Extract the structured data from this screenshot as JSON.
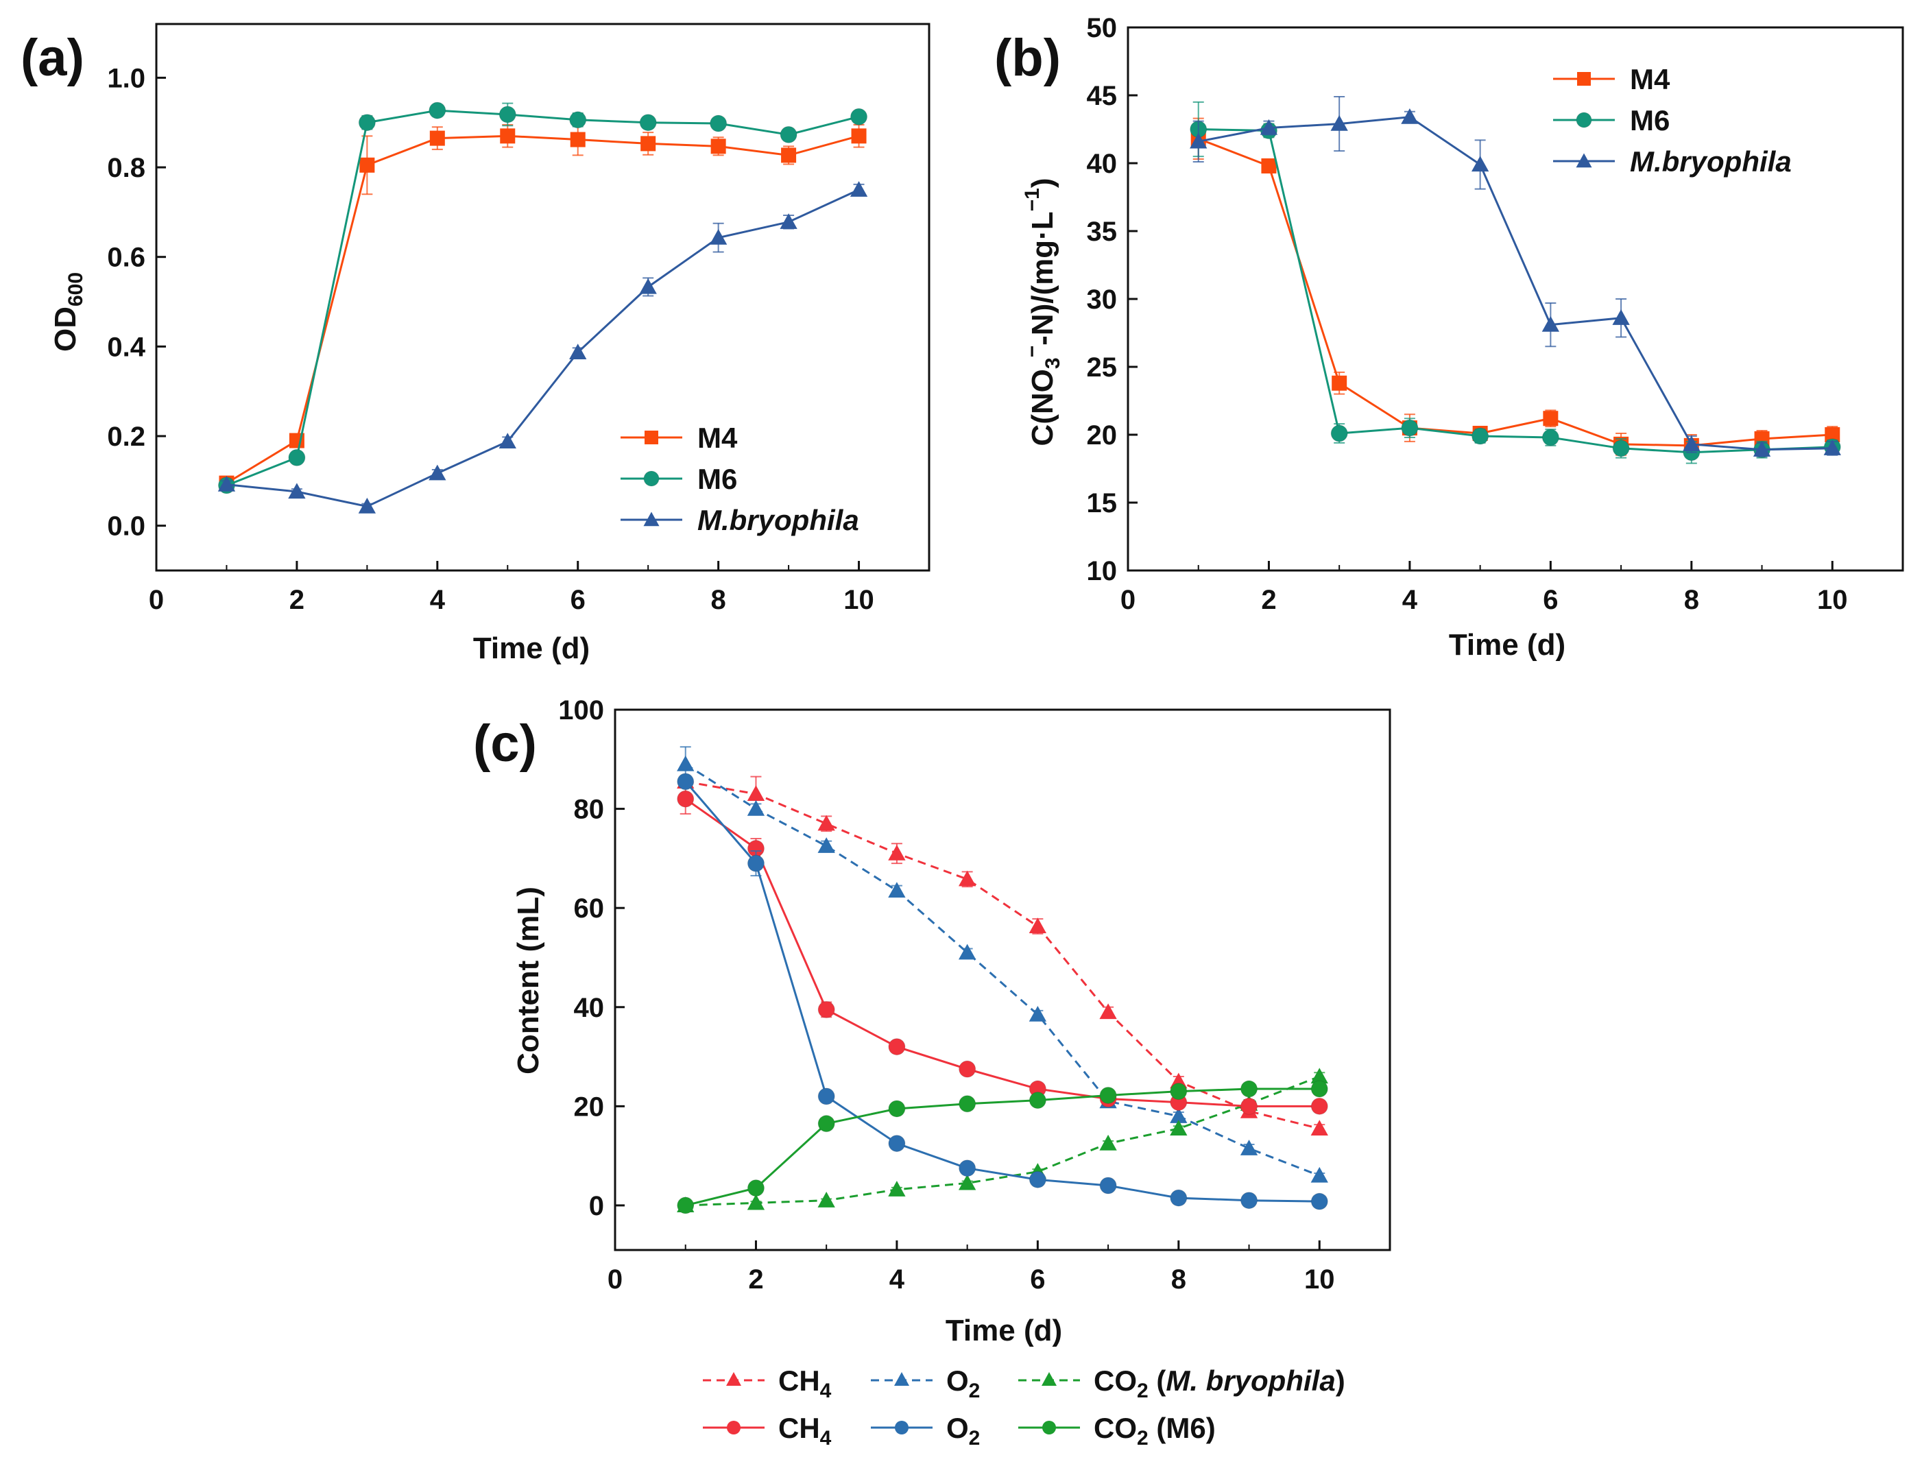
{
  "panels": [
    {
      "letter": "(a)",
      "xlabel": "Time (d)",
      "ylabel_main": "OD",
      "ylabel_sub": "600"
    },
    {
      "letter": "(b)",
      "xlabel": "Time (d)",
      "ylabel_main": "C(NO",
      "ylabel_sub": "3",
      "ylabel_sup": "−",
      "ylabel_rest": "-N)/(mg·L",
      "ylabel_sup2": "−1",
      "ylabel_end": ")"
    },
    {
      "letter": "(c)",
      "xlabel": "Time (d)",
      "ylabel": "Content (mL)"
    }
  ],
  "legend_c": [
    {
      "main": "CH",
      "sub": "4",
      "rest": ""
    },
    {
      "main": "O",
      "sub": "2",
      "rest": ""
    },
    {
      "main": "CO",
      "sub": "2",
      "rest_plain": " (",
      "rest_italic": "M. bryophila",
      "rest_end": ")"
    },
    {
      "main": "CH",
      "sub": "4",
      "rest": ""
    },
    {
      "main": "O",
      "sub": "2",
      "rest": ""
    },
    {
      "main": "CO",
      "sub": "2",
      "rest": " (M6)"
    }
  ],
  "chart_data": [
    {
      "type": "line",
      "panel": "(a)",
      "title": "",
      "xlabel": "Time (d)",
      "ylabel": "OD600",
      "xlim": [
        0,
        11
      ],
      "ylim": [
        -0.1,
        1.12
      ],
      "xticks": [
        0,
        2,
        4,
        6,
        8,
        10
      ],
      "yticks": [
        0.0,
        0.2,
        0.4,
        0.6,
        0.8,
        1.0
      ],
      "ytick_labels": [
        "0.0",
        "0.2",
        "0.4",
        "0.6",
        "0.8",
        "1.0"
      ],
      "legend_position": "lower-right",
      "x": [
        1,
        2,
        3,
        4,
        5,
        6,
        7,
        8,
        9,
        10
      ],
      "series": [
        {
          "name": "M4",
          "italic": false,
          "color": "#fa4a0c",
          "marker": "square",
          "values": [
            0.095,
            0.19,
            0.805,
            0.865,
            0.87,
            0.862,
            0.853,
            0.847,
            0.827,
            0.87
          ],
          "errors": [
            0.015,
            0.012,
            0.065,
            0.025,
            0.025,
            0.035,
            0.025,
            0.02,
            0.02,
            0.025
          ]
        },
        {
          "name": "M6",
          "italic": false,
          "color": "#14967a",
          "marker": "circle",
          "values": [
            0.09,
            0.152,
            0.9,
            0.927,
            0.918,
            0.906,
            0.9,
            0.898,
            0.873,
            0.913
          ],
          "errors": [
            0.008,
            0.008,
            0.015,
            0.012,
            0.025,
            0.015,
            0.012,
            0.01,
            0.012,
            0.012
          ]
        },
        {
          "name": "M.bryophila",
          "italic": true,
          "color": "#2f5a9e",
          "marker": "triangle",
          "values": [
            0.092,
            0.076,
            0.043,
            0.117,
            0.188,
            0.387,
            0.533,
            0.643,
            0.678,
            0.75
          ],
          "errors": [
            0.008,
            0.006,
            0.006,
            0.008,
            0.01,
            0.01,
            0.02,
            0.032,
            0.015,
            0.012
          ]
        }
      ]
    },
    {
      "type": "line",
      "panel": "(b)",
      "title": "",
      "xlabel": "Time (d)",
      "ylabel": "C(NO3−-N)/(mg·L−1)",
      "xlim": [
        0,
        11
      ],
      "ylim": [
        10,
        50
      ],
      "xticks": [
        0,
        2,
        4,
        6,
        8,
        10
      ],
      "yticks": [
        10,
        15,
        20,
        25,
        30,
        35,
        40,
        45,
        50
      ],
      "ytick_labels": [
        "10",
        "15",
        "20",
        "25",
        "30",
        "35",
        "40",
        "45",
        "50"
      ],
      "legend_position": "upper-right",
      "x": [
        1,
        2,
        3,
        4,
        5,
        6,
        7,
        8,
        9,
        10
      ],
      "series": [
        {
          "name": "M4",
          "italic": false,
          "color": "#fa4a0c",
          "marker": "square",
          "values": [
            41.8,
            39.8,
            23.8,
            20.5,
            20.1,
            21.2,
            19.3,
            19.2,
            19.7,
            20.0
          ],
          "errors": [
            1.5,
            0.5,
            0.8,
            1.0,
            0.5,
            0.6,
            0.8,
            0.8,
            0.6,
            0.6
          ]
        },
        {
          "name": "M6",
          "italic": false,
          "color": "#14967a",
          "marker": "circle",
          "values": [
            42.5,
            42.4,
            20.1,
            20.5,
            19.9,
            19.8,
            19.0,
            18.7,
            18.9,
            19.1
          ],
          "errors": [
            2.0,
            0.5,
            0.7,
            0.7,
            0.5,
            0.6,
            0.7,
            0.8,
            0.6,
            0.5
          ]
        },
        {
          "name": "M.bryophila",
          "italic": true,
          "color": "#2f5a9e",
          "marker": "triangle",
          "values": [
            41.6,
            42.6,
            42.9,
            43.4,
            39.9,
            28.1,
            28.6,
            19.3,
            18.9,
            19.0
          ],
          "errors": [
            1.5,
            0.5,
            2.0,
            0.4,
            1.8,
            1.6,
            1.4,
            0.6,
            0.5,
            0.5
          ]
        }
      ]
    },
    {
      "type": "line",
      "panel": "(c)",
      "title": "",
      "xlabel": "Time (d)",
      "ylabel": "Content (mL)",
      "xlim": [
        0,
        11
      ],
      "ylim": [
        -9,
        100
      ],
      "xticks": [
        0,
        2,
        4,
        6,
        8,
        10
      ],
      "yticks": [
        0,
        20,
        40,
        60,
        80,
        100
      ],
      "ytick_labels": [
        "0",
        "20",
        "40",
        "60",
        "80",
        "100"
      ],
      "legend_position": "below",
      "x": [
        1,
        2,
        3,
        4,
        5,
        6,
        7,
        8,
        9,
        10
      ],
      "series": [
        {
          "name": "CH4",
          "dashed": true,
          "color": "#f0323c",
          "marker": "triangle",
          "values": [
            85.5,
            83.0,
            77.0,
            71.0,
            65.8,
            56.3,
            39.0,
            25.0,
            19.0,
            15.5
          ],
          "errors": [
            1.0,
            3.5,
            1.5,
            2.0,
            1.5,
            1.5,
            1.0,
            1.0,
            1.0,
            0.8
          ]
        },
        {
          "name": "O2",
          "dashed": true,
          "color": "#2c6fb0",
          "marker": "triangle",
          "values": [
            89.0,
            80.0,
            72.5,
            63.5,
            51.0,
            38.5,
            21.0,
            18.0,
            11.5,
            6.0
          ],
          "errors": [
            3.5,
            1.0,
            1.0,
            1.0,
            0.8,
            0.8,
            0.8,
            0.8,
            0.8,
            0.5
          ]
        },
        {
          "name": "CO2 (M. bryophila)",
          "dashed": true,
          "color": "#1b9e2e",
          "marker": "triangle",
          "values": [
            0.0,
            0.5,
            1.0,
            3.2,
            4.5,
            6.8,
            12.5,
            15.5,
            20.5,
            26.0
          ],
          "errors": [
            0.3,
            0.3,
            0.3,
            0.4,
            0.4,
            0.5,
            0.5,
            0.5,
            0.8,
            0.8
          ]
        },
        {
          "name": "CH4",
          "dashed": false,
          "color": "#f0323c",
          "marker": "circle",
          "values": [
            82.0,
            72.0,
            39.5,
            32.0,
            27.5,
            23.5,
            21.5,
            20.8,
            20.0,
            20.0
          ],
          "errors": [
            3.0,
            2.0,
            1.5,
            0.8,
            1.0,
            0.8,
            0.5,
            0.5,
            0.5,
            0.5
          ]
        },
        {
          "name": "O2",
          "dashed": false,
          "color": "#2c6fb0",
          "marker": "circle",
          "values": [
            85.5,
            69.0,
            22.0,
            12.5,
            7.5,
            5.2,
            4.0,
            1.5,
            1.0,
            0.8
          ],
          "errors": [
            1.0,
            2.5,
            0.8,
            0.5,
            0.4,
            0.3,
            0.3,
            0.3,
            0.2,
            0.2
          ]
        },
        {
          "name": "CO2 (M6)",
          "dashed": false,
          "color": "#1b9e2e",
          "marker": "circle",
          "values": [
            0.0,
            3.5,
            16.5,
            19.5,
            20.5,
            21.2,
            22.2,
            23.0,
            23.5,
            23.5
          ],
          "errors": [
            0.3,
            0.3,
            0.8,
            0.6,
            0.6,
            0.6,
            0.6,
            0.6,
            0.6,
            0.6
          ]
        }
      ]
    }
  ]
}
